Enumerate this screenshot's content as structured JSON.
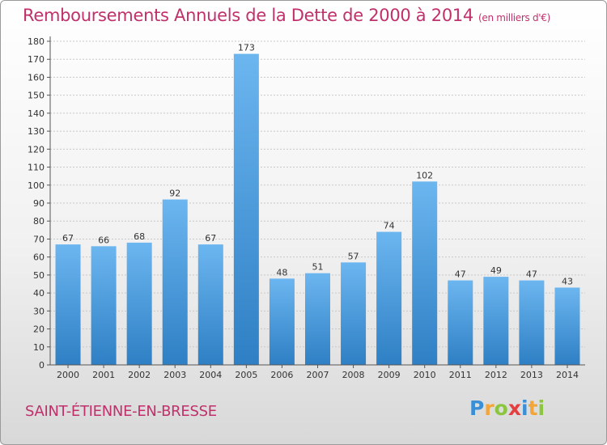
{
  "header": {
    "title": "Remboursements Annuels de la Dette de 2000 à 2014",
    "subtitle": "(en milliers d'€)"
  },
  "footer": {
    "place": "SAINT-ÉTIENNE-EN-BRESSE",
    "logo": [
      "P",
      "r",
      "o",
      "x",
      "i",
      "t",
      "i"
    ]
  },
  "colors": {
    "title": "#c0306a",
    "bar_light": "#6cb6f0",
    "bar_dark": "#2e7fc4",
    "logo": [
      "#3a8fd6",
      "#f2a63a",
      "#8cc63f",
      "#e53e3e",
      "#3a8fd6",
      "#f2a63a",
      "#8cc63f"
    ]
  },
  "chart_data": {
    "type": "bar",
    "title": "Remboursements Annuels de la Dette de 2000 à 2014",
    "subtitle": "(en milliers d'€)",
    "categories": [
      "2000",
      "2001",
      "2002",
      "2003",
      "2004",
      "2005",
      "2006",
      "2007",
      "2008",
      "2009",
      "2010",
      "2011",
      "2012",
      "2013",
      "2014"
    ],
    "values": [
      67,
      66,
      68,
      92,
      67,
      173,
      48,
      51,
      57,
      74,
      102,
      47,
      49,
      47,
      43
    ],
    "ylim": [
      0,
      180
    ],
    "yticks": [
      0,
      10,
      20,
      30,
      40,
      50,
      60,
      70,
      80,
      90,
      100,
      110,
      120,
      130,
      140,
      150,
      160,
      170,
      180
    ],
    "grid": true,
    "data_labels": true
  }
}
